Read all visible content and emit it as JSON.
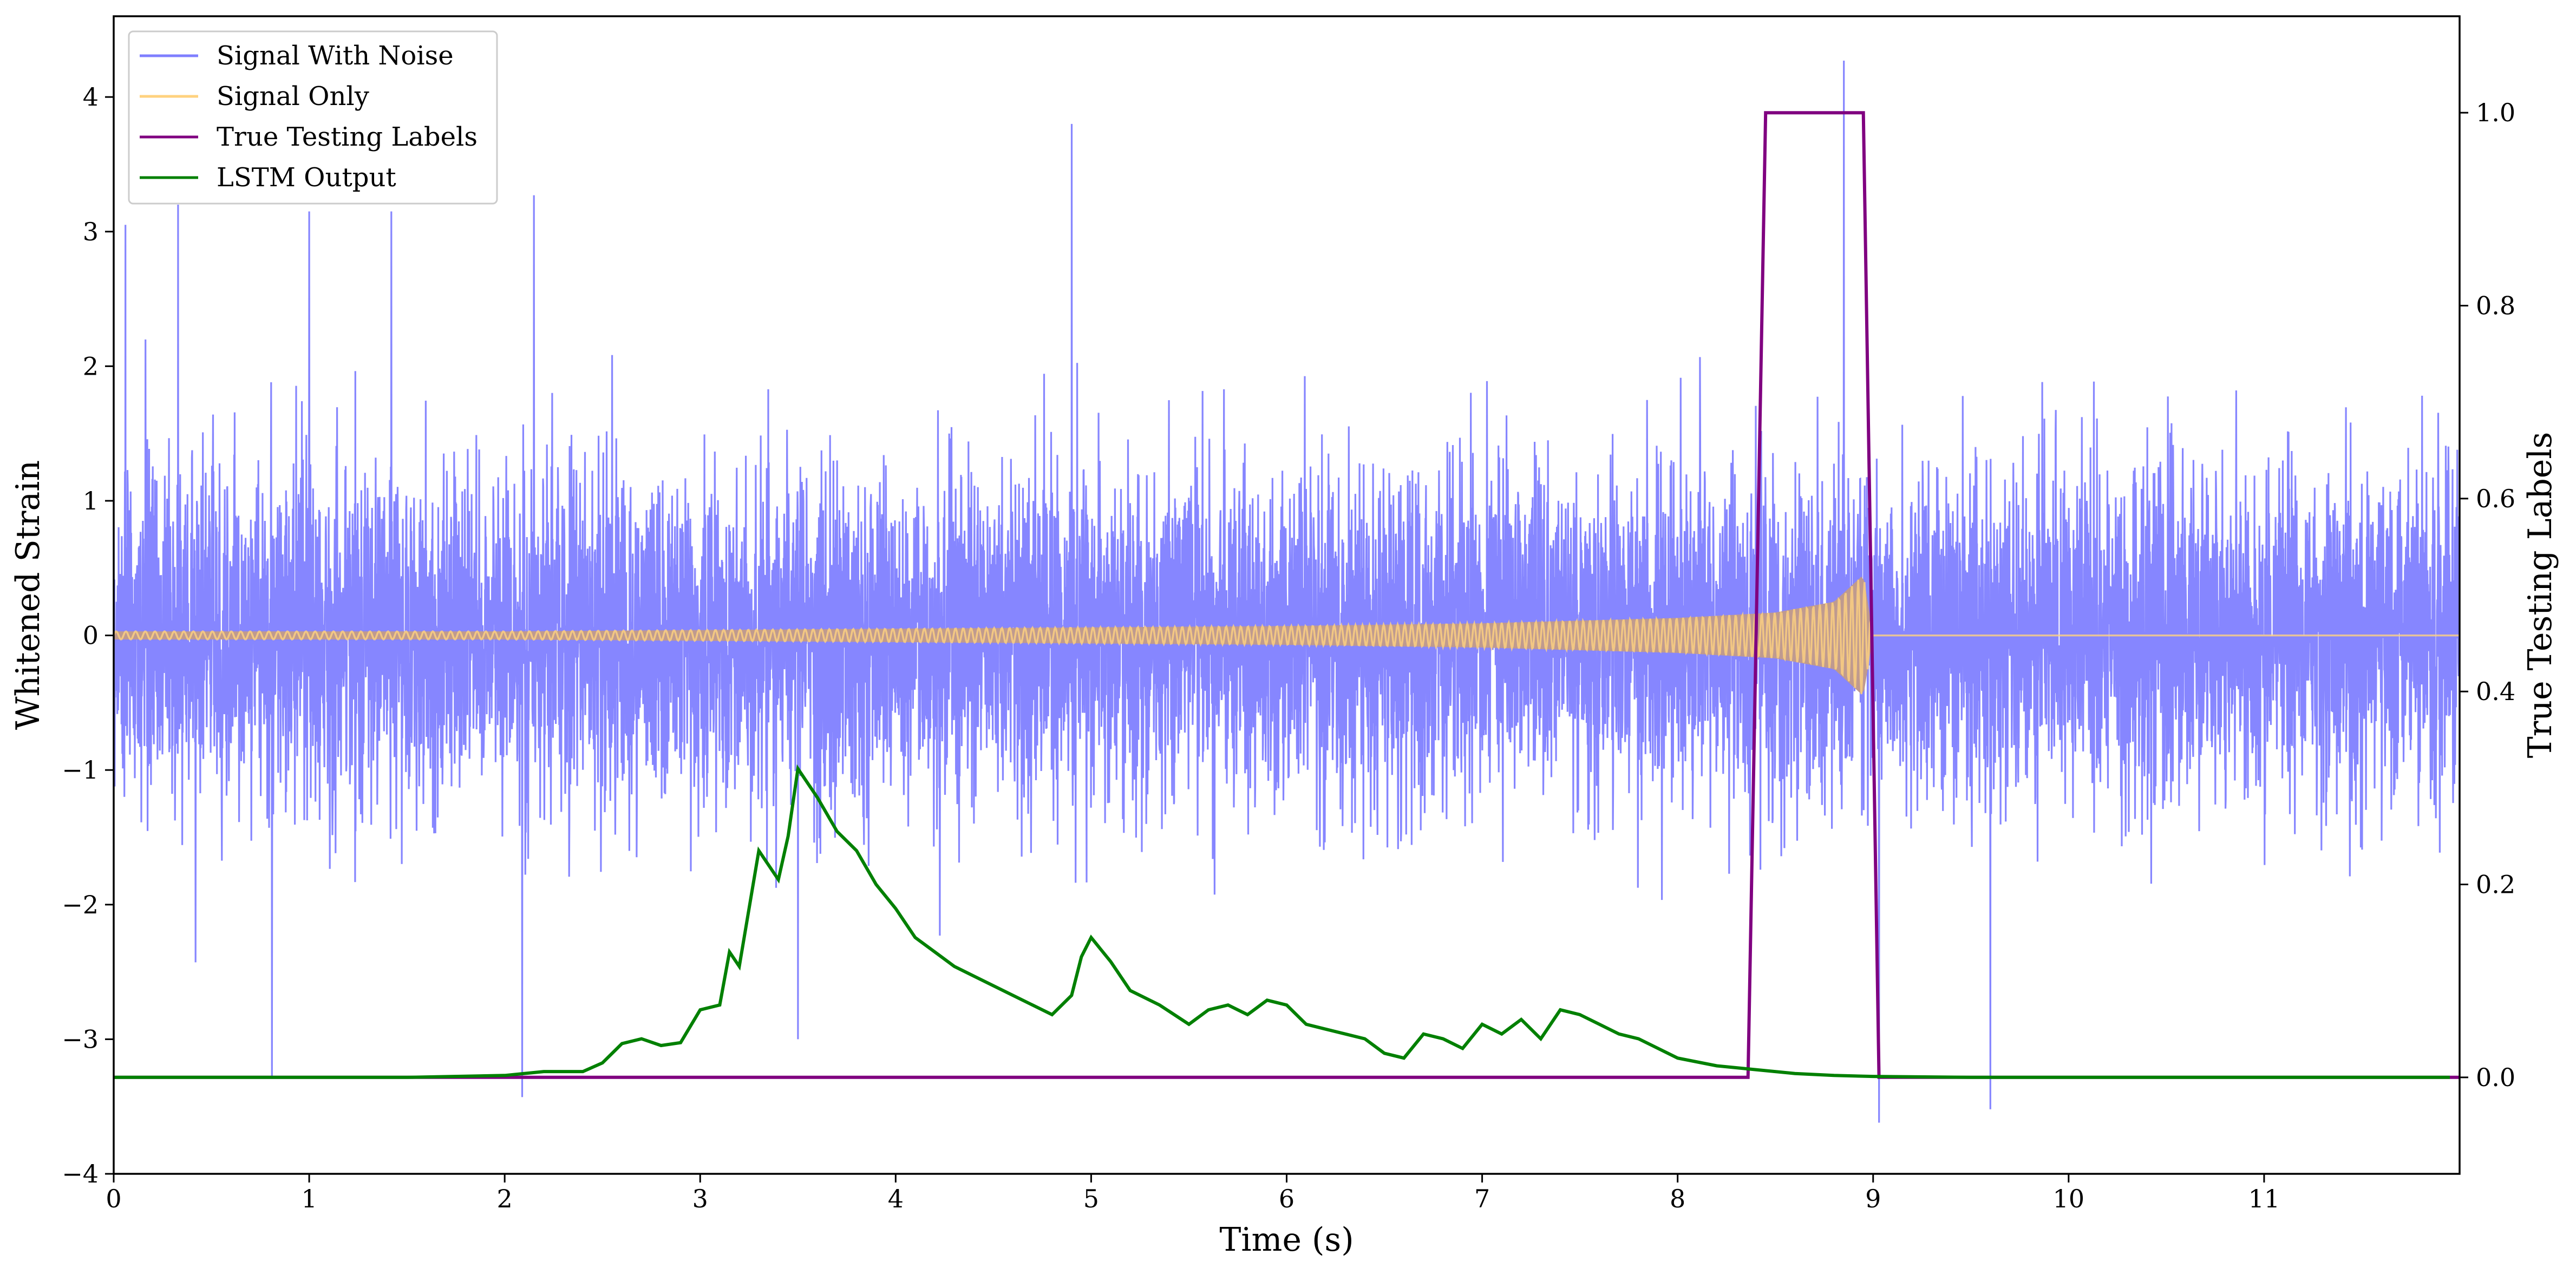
{
  "chart_data": {
    "type": "line",
    "xlabel": "Time (s)",
    "ylabel": "Whitened Strain",
    "y2label": "True Testing Labels",
    "xlim": [
      0,
      12
    ],
    "ylim": [
      -4,
      4.6
    ],
    "y2lim": [
      -0.1,
      1.1
    ],
    "x_ticks": [
      0,
      1,
      2,
      3,
      4,
      5,
      6,
      7,
      8,
      9,
      10,
      11
    ],
    "y_ticks": [
      -4,
      -3,
      -2,
      -1,
      0,
      1,
      2,
      3,
      4
    ],
    "y2_ticks": [
      0.0,
      0.2,
      0.4,
      0.6,
      0.8,
      1.0
    ],
    "grid": false,
    "legend_position": "top-left",
    "legend": [
      "Signal With Noise",
      "Signal Only",
      "True Testing Labels",
      "LSTM Output"
    ],
    "colors": {
      "signal_with_noise": "#7f7fff",
      "signal_only": "#ffd27f",
      "true_labels": "#800080",
      "lstm_output": "#008000",
      "signal_overlap": "#bf9a8f"
    },
    "series": [
      {
        "name": "Signal With Noise",
        "axis": "left",
        "summary": "whitened noise with signal, 0 to 12 s; bulk mostly within +/-1.5, peaks near +4.3 and -3.6",
        "peaks": [
          [
            0.06,
            3.05
          ],
          [
            0.33,
            3.2
          ],
          [
            1.0,
            3.15
          ],
          [
            1.42,
            3.15
          ],
          [
            2.15,
            3.27
          ],
          [
            4.9,
            3.8
          ],
          [
            8.85,
            4.27
          ],
          [
            0.81,
            -3.28
          ],
          [
            2.09,
            -3.43
          ],
          [
            3.5,
            -3.0
          ],
          [
            9.03,
            -3.62
          ],
          [
            9.6,
            -3.52
          ]
        ]
      },
      {
        "name": "Signal Only",
        "axis": "left",
        "summary": "chirp waveform, amplitude grows from ~0.03 to ~0.45 peak at ~9.0 s then zero",
        "envelope": {
          "x": [
            0,
            2,
            4,
            6,
            7,
            8,
            8.5,
            8.8,
            8.95,
            9.0,
            12
          ],
          "amp": [
            0.03,
            0.03,
            0.05,
            0.07,
            0.09,
            0.13,
            0.17,
            0.25,
            0.45,
            0.0,
            0.0
          ]
        }
      },
      {
        "name": "True Testing Labels",
        "axis": "right",
        "x": [
          0,
          8.36,
          8.45,
          8.95,
          9.03,
          12
        ],
        "values": [
          0,
          0,
          1.0,
          1.0,
          0,
          0
        ]
      },
      {
        "name": "LSTM Output",
        "axis": "right",
        "x": [
          0,
          1.5,
          2.0,
          2.2,
          2.4,
          2.5,
          2.6,
          2.7,
          2.8,
          2.9,
          3.0,
          3.1,
          3.15,
          3.2,
          3.3,
          3.4,
          3.45,
          3.5,
          3.6,
          3.7,
          3.8,
          3.9,
          4.0,
          4.1,
          4.2,
          4.3,
          4.4,
          4.6,
          4.7,
          4.8,
          4.9,
          4.95,
          5.0,
          5.1,
          5.2,
          5.35,
          5.5,
          5.6,
          5.7,
          5.8,
          5.9,
          6.0,
          6.1,
          6.2,
          6.3,
          6.4,
          6.5,
          6.6,
          6.7,
          6.8,
          6.9,
          7.0,
          7.1,
          7.2,
          7.3,
          7.4,
          7.5,
          7.6,
          7.7,
          7.8,
          8.0,
          8.2,
          8.4,
          8.6,
          8.8,
          9.0,
          9.5,
          10.0,
          11.0,
          11.95
        ],
        "values": [
          0.0,
          0.0,
          0.002,
          0.006,
          0.006,
          0.015,
          0.035,
          0.04,
          0.033,
          0.036,
          0.07,
          0.075,
          0.13,
          0.115,
          0.235,
          0.205,
          0.25,
          0.32,
          0.29,
          0.255,
          0.235,
          0.2,
          0.175,
          0.145,
          0.13,
          0.115,
          0.105,
          0.085,
          0.075,
          0.065,
          0.085,
          0.125,
          0.145,
          0.12,
          0.09,
          0.075,
          0.055,
          0.07,
          0.075,
          0.065,
          0.08,
          0.075,
          0.055,
          0.05,
          0.045,
          0.04,
          0.025,
          0.02,
          0.045,
          0.04,
          0.03,
          0.055,
          0.045,
          0.06,
          0.04,
          0.07,
          0.065,
          0.055,
          0.045,
          0.04,
          0.02,
          0.012,
          0.008,
          0.004,
          0.002,
          0.001,
          0.0,
          0.0,
          0.0,
          0.0
        ]
      }
    ]
  }
}
